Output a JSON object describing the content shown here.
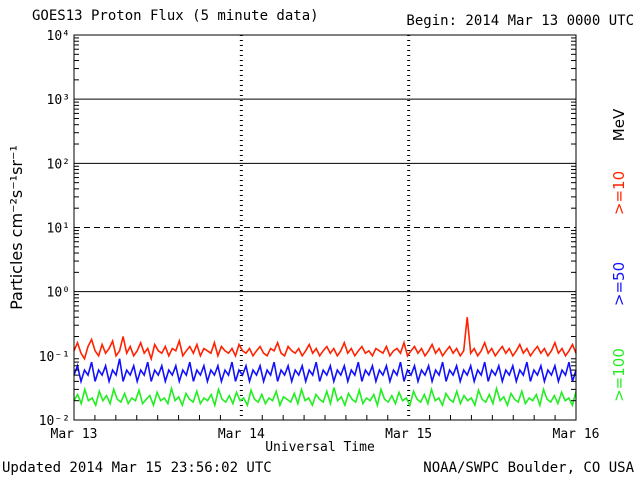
{
  "header": {
    "title": "GOES13 Proton Flux (5 minute data)",
    "begin": "Begin: 2014 Mar 13 0000 UTC"
  },
  "footer": {
    "updated": "Updated 2014 Mar 15 23:56:02 UTC",
    "credit": "NOAA/SWPC Boulder, CO USA"
  },
  "colors": {
    "ge10": "#ff2200",
    "ge50": "#1111ff",
    "ge100": "#22ee22",
    "axis": "#000000"
  },
  "chart_data": {
    "type": "line",
    "title": "GOES13 Proton Flux (5 minute data)",
    "ylabel": "Particles cm⁻²s⁻¹sr⁻¹",
    "xlabel": "Universal Time",
    "yscale": "log",
    "ylim": [
      0.01,
      10000
    ],
    "xlim": [
      "2014-03-13 00:00",
      "2014-03-16 00:00"
    ],
    "x_ticks": [
      "Mar 13",
      "Mar 14",
      "Mar 15",
      "Mar 16"
    ],
    "y_ticks": [
      "10⁻²",
      "10⁻¹",
      "10⁰",
      "10¹",
      "10²",
      "10³",
      "10⁴"
    ],
    "threshold_lines": [
      1,
      10,
      100,
      1000
    ],
    "dashed_lines": [
      10
    ],
    "legend_unit": "MeV",
    "legend_placement": "right",
    "series": [
      {
        "name": ">=10",
        "color": "#ff2200",
        "values": [
          0.12,
          0.16,
          0.11,
          0.09,
          0.14,
          0.18,
          0.12,
          0.1,
          0.15,
          0.11,
          0.13,
          0.17,
          0.1,
          0.12,
          0.2,
          0.11,
          0.14,
          0.1,
          0.12,
          0.16,
          0.11,
          0.13,
          0.09,
          0.15,
          0.12,
          0.11,
          0.14,
          0.1,
          0.13,
          0.12,
          0.17,
          0.1,
          0.12,
          0.14,
          0.11,
          0.15,
          0.1,
          0.13,
          0.12,
          0.11,
          0.16,
          0.1,
          0.14,
          0.12,
          0.11,
          0.13,
          0.1,
          0.15,
          0.12,
          0.11,
          0.13,
          0.1,
          0.12,
          0.14,
          0.11,
          0.1,
          0.13,
          0.12,
          0.16,
          0.11,
          0.1,
          0.14,
          0.12,
          0.11,
          0.13,
          0.1,
          0.12,
          0.15,
          0.11,
          0.13,
          0.1,
          0.12,
          0.14,
          0.11,
          0.13,
          0.1,
          0.12,
          0.16,
          0.11,
          0.13,
          0.1,
          0.12,
          0.14,
          0.11,
          0.12,
          0.1,
          0.13,
          0.12,
          0.11,
          0.14,
          0.1,
          0.12,
          0.13,
          0.11,
          0.16,
          0.1,
          0.12,
          0.14,
          0.11,
          0.13,
          0.1,
          0.12,
          0.15,
          0.11,
          0.13,
          0.1,
          0.12,
          0.14,
          0.11,
          0.13,
          0.1,
          0.12,
          0.4,
          0.11,
          0.13,
          0.1,
          0.12,
          0.16,
          0.11,
          0.13,
          0.1,
          0.12,
          0.14,
          0.11,
          0.13,
          0.1,
          0.12,
          0.15,
          0.11,
          0.13,
          0.1,
          0.12,
          0.14,
          0.11,
          0.13,
          0.1,
          0.12,
          0.16,
          0.11,
          0.13,
          0.1,
          0.12,
          0.15,
          0.11
        ]
      },
      {
        "name": ">=50",
        "color": "#1111ff",
        "values": [
          0.05,
          0.07,
          0.04,
          0.06,
          0.05,
          0.08,
          0.04,
          0.06,
          0.05,
          0.07,
          0.04,
          0.06,
          0.05,
          0.09,
          0.04,
          0.06,
          0.05,
          0.07,
          0.04,
          0.06,
          0.05,
          0.08,
          0.04,
          0.06,
          0.05,
          0.07,
          0.04,
          0.06,
          0.05,
          0.07,
          0.04,
          0.06,
          0.05,
          0.08,
          0.04,
          0.06,
          0.05,
          0.07,
          0.04,
          0.06,
          0.05,
          0.07,
          0.04,
          0.06,
          0.05,
          0.08,
          0.04,
          0.06,
          0.05,
          0.07,
          0.04,
          0.06,
          0.05,
          0.07,
          0.04,
          0.06,
          0.05,
          0.08,
          0.04,
          0.06,
          0.05,
          0.07,
          0.04,
          0.06,
          0.05,
          0.07,
          0.04,
          0.06,
          0.05,
          0.08,
          0.04,
          0.06,
          0.05,
          0.07,
          0.04,
          0.06,
          0.05,
          0.07,
          0.04,
          0.06,
          0.05,
          0.08,
          0.04,
          0.06,
          0.05,
          0.07,
          0.04,
          0.06,
          0.05,
          0.07,
          0.04,
          0.06,
          0.05,
          0.08,
          0.04,
          0.06,
          0.05,
          0.07,
          0.04,
          0.06,
          0.05,
          0.07,
          0.04,
          0.06,
          0.05,
          0.08,
          0.04,
          0.06,
          0.05,
          0.07,
          0.04,
          0.06,
          0.05,
          0.07,
          0.04,
          0.06,
          0.05,
          0.08,
          0.04,
          0.06,
          0.05,
          0.07,
          0.04,
          0.06,
          0.05,
          0.07,
          0.04,
          0.06,
          0.05,
          0.08,
          0.04,
          0.06,
          0.05,
          0.07,
          0.04,
          0.06,
          0.05,
          0.07,
          0.04,
          0.06,
          0.05,
          0.08,
          0.04,
          0.06
        ]
      },
      {
        "name": ">=100",
        "color": "#22ee22",
        "values": [
          0.02,
          0.025,
          0.018,
          0.03,
          0.02,
          0.022,
          0.017,
          0.028,
          0.02,
          0.024,
          0.018,
          0.03,
          0.021,
          0.019,
          0.026,
          0.018,
          0.022,
          0.02,
          0.029,
          0.018,
          0.021,
          0.024,
          0.017,
          0.027,
          0.02,
          0.022,
          0.018,
          0.031,
          0.02,
          0.023,
          0.017,
          0.026,
          0.021,
          0.019,
          0.028,
          0.018,
          0.022,
          0.02,
          0.025,
          0.017,
          0.03,
          0.021,
          0.019,
          0.024,
          0.018,
          0.027,
          0.02,
          0.022,
          0.017,
          0.029,
          0.021,
          0.019,
          0.025,
          0.018,
          0.022,
          0.02,
          0.028,
          0.017,
          0.023,
          0.021,
          0.019,
          0.026,
          0.018,
          0.03,
          0.02,
          0.022,
          0.017,
          0.025,
          0.021,
          0.019,
          0.028,
          0.018,
          0.032,
          0.02,
          0.023,
          0.017,
          0.026,
          0.021,
          0.019,
          0.029,
          0.018,
          0.022,
          0.02,
          0.025,
          0.017,
          0.03,
          0.021,
          0.019,
          0.024,
          0.018,
          0.027,
          0.02,
          0.022,
          0.017,
          0.028,
          0.021,
          0.019,
          0.025,
          0.018,
          0.03,
          0.02,
          0.022,
          0.017,
          0.026,
          0.021,
          0.019,
          0.028,
          0.018,
          0.024,
          0.02,
          0.022,
          0.017,
          0.029,
          0.021,
          0.019,
          0.025,
          0.018,
          0.031,
          0.02,
          0.023,
          0.017,
          0.026,
          0.021,
          0.019,
          0.028,
          0.018,
          0.022,
          0.02,
          0.025,
          0.017,
          0.03,
          0.021,
          0.019,
          0.024,
          0.018,
          0.027,
          0.02,
          0.022,
          0.017,
          0.028
        ]
      }
    ]
  }
}
